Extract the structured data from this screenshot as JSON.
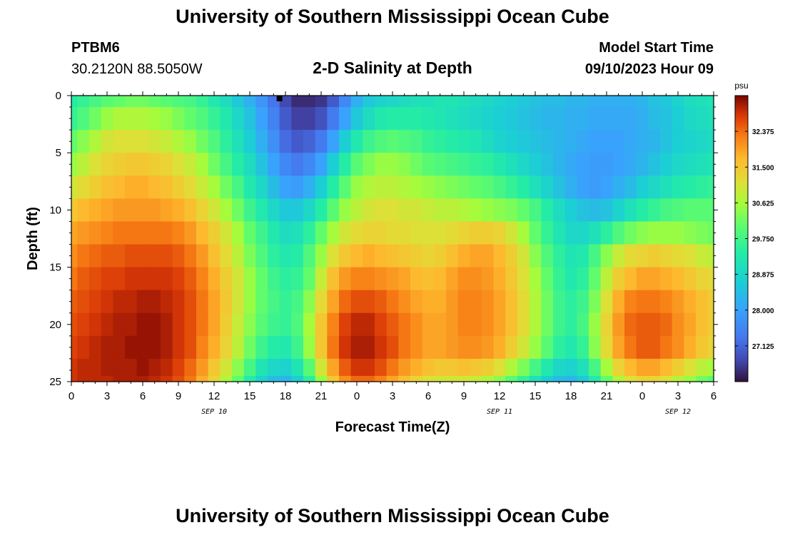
{
  "header": {
    "title": "University of Southern Mississippi Ocean Cube",
    "station_id": "PTBM6",
    "coordinates": "30.2120N  88.5050W",
    "plot_title": "2-D Salinity at Depth",
    "model_start_label": "Model Start Time",
    "model_start_value": "09/10/2023 Hour 09"
  },
  "footer": {
    "title": "University of Southern Mississippi Ocean Cube"
  },
  "chart_data": {
    "type": "heatmap",
    "title": "2-D Salinity at Depth",
    "xlabel": "Forecast Time(Z)",
    "ylabel": "Depth (ft)",
    "x_range_hours": [
      0,
      54
    ],
    "y_range_ft": [
      0,
      25
    ],
    "x_tick_values": [
      0,
      3,
      6,
      9,
      12,
      15,
      18,
      21,
      24,
      27,
      30,
      33,
      36,
      39,
      42,
      45,
      48,
      51,
      54
    ],
    "x_tick_labels": [
      "0",
      "3",
      "6",
      "9",
      "12",
      "15",
      "18",
      "21",
      "0",
      "3",
      "6",
      "9",
      "12",
      "15",
      "18",
      "21",
      "0",
      "3",
      "6"
    ],
    "y_tick_values": [
      0,
      5,
      10,
      15,
      20,
      25
    ],
    "y_tick_labels": [
      "0",
      "5",
      "10",
      "15",
      "20",
      "25"
    ],
    "date_labels": [
      {
        "hour": 12,
        "label": "SEP 10"
      },
      {
        "hour": 36,
        "label": "SEP 11"
      },
      {
        "hour": 51,
        "label": "SEP 12"
      }
    ],
    "current_time_marker_hour": 17.5,
    "colorbar": {
      "unit": "psu",
      "min": 26.25,
      "max": 33.25,
      "tick_values": [
        27.125,
        28.0,
        28.875,
        29.75,
        30.625,
        31.5,
        32.375
      ],
      "tick_labels": [
        "27.125",
        "28.000",
        "28.875",
        "29.750",
        "30.625",
        "31.500",
        "32.375"
      ]
    },
    "grid": {
      "x_hours": [
        0,
        1,
        2,
        3,
        4,
        5,
        6,
        7,
        8,
        9,
        10,
        11,
        12,
        13,
        14,
        15,
        16,
        17,
        18,
        19,
        20,
        21,
        22,
        23,
        24,
        25,
        26,
        27,
        28,
        29,
        30,
        31,
        32,
        33,
        34,
        35,
        36,
        37,
        38,
        39,
        40,
        41,
        42,
        43,
        44,
        45,
        46,
        47,
        48,
        49,
        50,
        51,
        52,
        53,
        54
      ],
      "y_depths_ft": [
        0,
        2,
        4,
        6,
        8,
        10,
        12,
        14,
        16,
        18,
        20,
        22,
        24,
        25
      ],
      "salinity_psu": [
        [
          29.4,
          29.6,
          29.8,
          30.0,
          30.1,
          30.2,
          30.2,
          30.1,
          30.0,
          29.9,
          29.8,
          29.6,
          29.3,
          29.0,
          28.6,
          28.2,
          27.8,
          27.3,
          26.8,
          26.5,
          26.5,
          26.6,
          27.0,
          27.6,
          28.2,
          28.6,
          28.8,
          28.9,
          29.0,
          29.1,
          29.1,
          29.2,
          29.2,
          29.1,
          29.0,
          28.9,
          28.8,
          28.7,
          28.6,
          28.5,
          28.4,
          28.4,
          28.3,
          28.3,
          28.2,
          28.2,
          28.2,
          28.2,
          28.3,
          28.5,
          28.6,
          28.8,
          29.0,
          29.1,
          29.2
        ],
        [
          29.6,
          29.9,
          30.2,
          30.5,
          30.7,
          30.7,
          30.7,
          30.6,
          30.5,
          30.3,
          30.1,
          29.9,
          29.6,
          29.3,
          28.9,
          28.5,
          28.0,
          27.5,
          27.0,
          26.7,
          26.7,
          26.9,
          27.4,
          28.0,
          28.6,
          29.0,
          29.3,
          29.4,
          29.4,
          29.4,
          29.3,
          29.2,
          29.1,
          29.0,
          28.9,
          28.8,
          28.7,
          28.6,
          28.5,
          28.4,
          28.3,
          28.3,
          28.2,
          28.2,
          28.1,
          28.1,
          28.1,
          28.1,
          28.2,
          28.4,
          28.5,
          28.7,
          28.9,
          29.0,
          29.1
        ],
        [
          30.1,
          30.4,
          30.7,
          31.0,
          31.1,
          31.1,
          31.1,
          31.0,
          30.9,
          30.7,
          30.5,
          30.2,
          29.9,
          29.5,
          29.1,
          28.7,
          28.2,
          27.7,
          27.2,
          27.0,
          27.1,
          27.4,
          28.0,
          28.7,
          29.3,
          29.7,
          29.9,
          30.0,
          29.9,
          29.8,
          29.6,
          29.5,
          29.4,
          29.3,
          29.2,
          29.0,
          28.8,
          28.7,
          28.6,
          28.5,
          28.4,
          28.3,
          28.2,
          28.1,
          28.0,
          28.0,
          28.0,
          28.1,
          28.2,
          28.3,
          28.5,
          28.7,
          28.8,
          28.9,
          29.0
        ],
        [
          30.5,
          30.8,
          31.1,
          31.3,
          31.4,
          31.5,
          31.5,
          31.4,
          31.3,
          31.1,
          30.9,
          30.6,
          30.2,
          29.8,
          29.4,
          29.0,
          28.5,
          28.0,
          27.6,
          27.4,
          27.6,
          28.0,
          28.7,
          29.4,
          30.0,
          30.3,
          30.5,
          30.5,
          30.4,
          30.2,
          30.0,
          29.9,
          29.8,
          29.7,
          29.6,
          29.5,
          29.3,
          29.1,
          28.9,
          28.7,
          28.5,
          28.3,
          28.1,
          28.0,
          27.9,
          27.9,
          28.0,
          28.1,
          28.3,
          28.5,
          28.7,
          28.9,
          29.0,
          29.1,
          29.2
        ],
        [
          31.0,
          31.2,
          31.4,
          31.6,
          31.7,
          31.8,
          31.8,
          31.7,
          31.6,
          31.4,
          31.2,
          30.9,
          30.6,
          30.2,
          29.8,
          29.3,
          28.9,
          28.4,
          28.0,
          27.9,
          28.2,
          28.7,
          29.4,
          30.0,
          30.5,
          30.7,
          30.8,
          30.8,
          30.7,
          30.6,
          30.5,
          30.4,
          30.3,
          30.2,
          30.1,
          30.0,
          29.8,
          29.6,
          29.4,
          29.1,
          28.8,
          28.5,
          28.2,
          28.0,
          27.9,
          28.0,
          28.2,
          28.4,
          28.7,
          28.9,
          29.1,
          29.3,
          29.4,
          29.5,
          29.6
        ],
        [
          31.5,
          31.7,
          31.8,
          31.9,
          32.0,
          32.0,
          32.0,
          32.0,
          31.9,
          31.8,
          31.6,
          31.3,
          31.0,
          30.6,
          30.2,
          29.7,
          29.3,
          28.9,
          28.6,
          28.6,
          28.9,
          29.4,
          30.0,
          30.5,
          30.8,
          31.0,
          31.1,
          31.1,
          31.0,
          31.0,
          30.9,
          30.8,
          30.8,
          30.7,
          30.6,
          30.5,
          30.4,
          30.3,
          30.1,
          29.8,
          29.4,
          29.0,
          28.7,
          28.5,
          28.4,
          28.5,
          28.8,
          29.1,
          29.4,
          29.6,
          29.8,
          29.9,
          30.0,
          30.0,
          30.0
        ],
        [
          31.9,
          32.0,
          32.1,
          32.2,
          32.3,
          32.3,
          32.3,
          32.3,
          32.3,
          32.2,
          32.0,
          31.7,
          31.4,
          31.0,
          30.6,
          30.1,
          29.7,
          29.3,
          29.0,
          29.1,
          29.5,
          30.1,
          30.6,
          31.0,
          31.2,
          31.3,
          31.3,
          31.2,
          31.2,
          31.1,
          31.1,
          31.1,
          31.2,
          31.3,
          31.4,
          31.4,
          31.3,
          31.0,
          30.6,
          30.1,
          29.6,
          29.2,
          28.9,
          28.9,
          29.1,
          29.5,
          29.9,
          30.2,
          30.4,
          30.5,
          30.5,
          30.5,
          30.4,
          30.3,
          30.2
        ],
        [
          32.1,
          32.3,
          32.4,
          32.5,
          32.5,
          32.6,
          32.6,
          32.6,
          32.6,
          32.5,
          32.3,
          32.0,
          31.6,
          31.2,
          30.8,
          30.3,
          29.9,
          29.5,
          29.3,
          29.4,
          29.9,
          30.5,
          31.1,
          31.5,
          31.7,
          31.8,
          31.7,
          31.6,
          31.5,
          31.4,
          31.3,
          31.4,
          31.6,
          31.8,
          31.9,
          31.9,
          31.7,
          31.4,
          31.0,
          30.4,
          29.9,
          29.5,
          29.2,
          29.3,
          29.8,
          30.4,
          30.9,
          31.2,
          31.3,
          31.4,
          31.3,
          31.2,
          31.1,
          30.9,
          30.8
        ],
        [
          32.3,
          32.5,
          32.6,
          32.7,
          32.7,
          32.8,
          32.8,
          32.8,
          32.8,
          32.7,
          32.5,
          32.2,
          31.8,
          31.4,
          31.0,
          30.5,
          30.1,
          29.7,
          29.5,
          29.6,
          30.1,
          30.9,
          31.6,
          32.0,
          32.2,
          32.2,
          32.1,
          32.0,
          31.9,
          31.7,
          31.6,
          31.7,
          31.9,
          32.1,
          32.1,
          32.0,
          31.8,
          31.5,
          31.1,
          30.6,
          30.1,
          29.6,
          29.3,
          29.5,
          30.1,
          30.8,
          31.4,
          31.7,
          31.9,
          31.9,
          31.8,
          31.7,
          31.5,
          31.3,
          31.2
        ],
        [
          32.5,
          32.6,
          32.7,
          32.8,
          32.9,
          32.9,
          33.0,
          33.0,
          32.9,
          32.8,
          32.6,
          32.3,
          31.9,
          31.5,
          31.0,
          30.5,
          30.1,
          29.8,
          29.6,
          29.8,
          30.4,
          31.2,
          31.9,
          32.4,
          32.6,
          32.6,
          32.5,
          32.3,
          32.1,
          31.9,
          31.8,
          31.8,
          32.0,
          32.2,
          32.2,
          32.1,
          31.9,
          31.6,
          31.2,
          30.7,
          30.2,
          29.7,
          29.5,
          29.7,
          30.3,
          31.1,
          31.8,
          32.2,
          32.3,
          32.3,
          32.2,
          32.0,
          31.8,
          31.6,
          31.4
        ],
        [
          32.6,
          32.7,
          32.8,
          32.9,
          33.0,
          33.0,
          33.1,
          33.1,
          33.0,
          32.8,
          32.6,
          32.3,
          31.9,
          31.4,
          30.9,
          30.4,
          30.0,
          29.7,
          29.6,
          29.9,
          30.6,
          31.5,
          32.2,
          32.7,
          32.9,
          32.9,
          32.7,
          32.5,
          32.3,
          32.1,
          31.9,
          31.9,
          32.0,
          32.2,
          32.2,
          32.1,
          31.9,
          31.6,
          31.2,
          30.7,
          30.2,
          29.7,
          29.5,
          29.8,
          30.5,
          31.3,
          32.0,
          32.4,
          32.5,
          32.5,
          32.4,
          32.1,
          31.9,
          31.6,
          31.4
        ],
        [
          32.7,
          32.8,
          32.9,
          33.0,
          33.0,
          33.1,
          33.1,
          33.1,
          33.0,
          32.8,
          32.6,
          32.2,
          31.8,
          31.3,
          30.8,
          30.2,
          29.7,
          29.4,
          29.3,
          29.7,
          30.5,
          31.5,
          32.3,
          32.8,
          33.0,
          33.0,
          32.8,
          32.6,
          32.3,
          32.1,
          31.9,
          31.9,
          32.0,
          32.1,
          32.1,
          32.0,
          31.8,
          31.4,
          31.0,
          30.5,
          30.0,
          29.5,
          29.3,
          29.6,
          30.4,
          31.2,
          31.9,
          32.3,
          32.5,
          32.5,
          32.3,
          32.1,
          31.8,
          31.5,
          31.3
        ],
        [
          32.8,
          32.9,
          32.9,
          33.0,
          33.0,
          33.0,
          33.1,
          33.0,
          32.9,
          32.7,
          32.4,
          32.0,
          31.5,
          31.0,
          30.4,
          29.8,
          29.2,
          28.9,
          28.8,
          29.2,
          30.0,
          31.0,
          31.9,
          32.5,
          32.8,
          32.8,
          32.6,
          32.3,
          32.0,
          31.8,
          31.6,
          31.5,
          31.5,
          31.6,
          31.5,
          31.4,
          31.1,
          30.7,
          30.3,
          29.8,
          29.3,
          28.9,
          28.8,
          29.1,
          29.8,
          30.6,
          31.3,
          31.7,
          31.9,
          31.9,
          31.7,
          31.4,
          31.1,
          30.8,
          30.6
        ],
        [
          32.8,
          32.9,
          32.9,
          32.9,
          33.0,
          33.0,
          33.0,
          32.9,
          32.8,
          32.6,
          32.3,
          31.8,
          31.3,
          30.7,
          30.1,
          29.4,
          28.8,
          28.4,
          28.3,
          28.7,
          29.5,
          30.5,
          31.5,
          32.1,
          32.4,
          32.4,
          32.2,
          31.9,
          31.6,
          31.3,
          31.1,
          31.0,
          31.0,
          31.0,
          30.9,
          30.7,
          30.4,
          30.0,
          29.6,
          29.1,
          28.7,
          28.4,
          28.3,
          28.6,
          29.3,
          30.1,
          30.7,
          31.1,
          31.3,
          31.3,
          31.1,
          30.8,
          30.5,
          30.2,
          30.0
        ]
      ]
    }
  }
}
